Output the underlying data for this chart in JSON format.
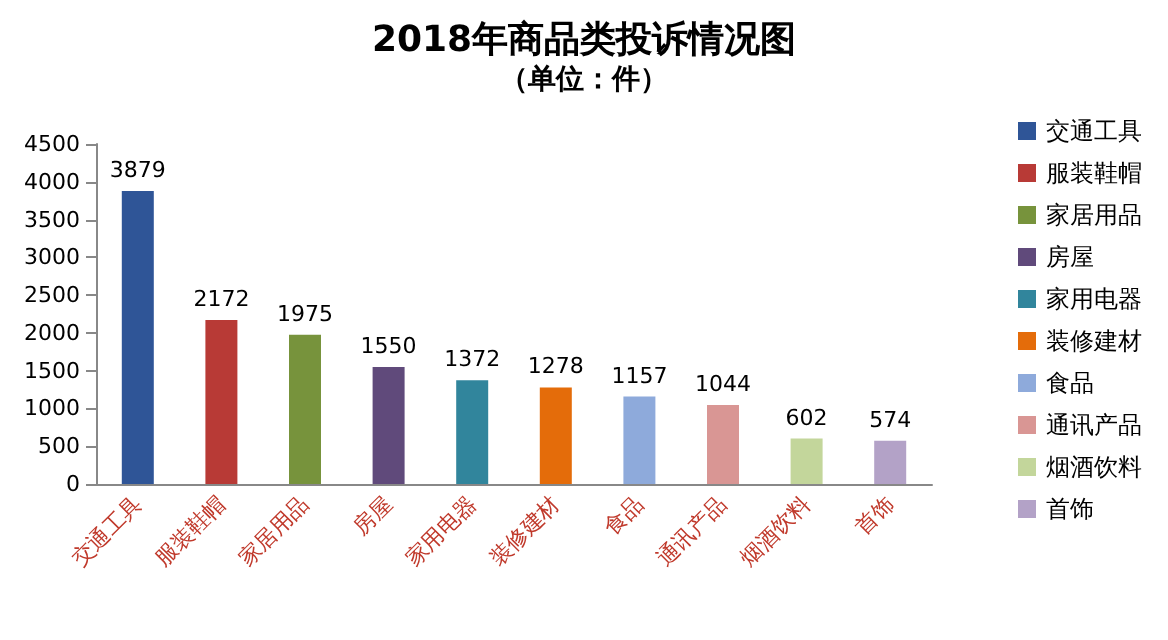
{
  "chart_data": {
    "type": "bar",
    "title": "2018年商品类投诉情况图",
    "subtitle": "（单位：件）",
    "categories": [
      "交通工具",
      "服装鞋帽",
      "家居用品",
      "房屋",
      "家用电器",
      "装修建材",
      "食品",
      "通讯产品",
      "烟酒饮料",
      "首饰"
    ],
    "series": [
      {
        "name": "交通工具",
        "color": "#2f5597",
        "values": [
          3879,
          null,
          null,
          null,
          null,
          null,
          null,
          null,
          null,
          null
        ]
      },
      {
        "name": "服装鞋帽",
        "color": "#b83a36",
        "values": [
          null,
          2172,
          null,
          null,
          null,
          null,
          null,
          null,
          null,
          null
        ]
      },
      {
        "name": "家居用品",
        "color": "#77933c",
        "values": [
          null,
          null,
          1975,
          null,
          null,
          null,
          null,
          null,
          null,
          null
        ]
      },
      {
        "name": "房屋",
        "color": "#604a7b",
        "values": [
          null,
          null,
          null,
          1550,
          null,
          null,
          null,
          null,
          null,
          null
        ]
      },
      {
        "name": "家用电器",
        "color": "#31859c",
        "values": [
          null,
          null,
          null,
          null,
          1372,
          null,
          null,
          null,
          null,
          null
        ]
      },
      {
        "name": "装修建材",
        "color": "#e46c0a",
        "values": [
          null,
          null,
          null,
          null,
          null,
          1278,
          null,
          null,
          null,
          null
        ]
      },
      {
        "name": "食品",
        "color": "#8eaadb",
        "values": [
          null,
          null,
          null,
          null,
          null,
          null,
          1157,
          null,
          null,
          null
        ]
      },
      {
        "name": "通讯产品",
        "color": "#d99694",
        "values": [
          null,
          null,
          null,
          null,
          null,
          null,
          null,
          1044,
          null,
          null
        ]
      },
      {
        "name": "烟酒饮料",
        "color": "#c3d69b",
        "values": [
          null,
          null,
          null,
          null,
          null,
          null,
          null,
          null,
          602,
          null
        ]
      },
      {
        "name": "首饰",
        "color": "#b3a2c7",
        "values": [
          null,
          null,
          null,
          null,
          null,
          null,
          null,
          null,
          null,
          574
        ]
      }
    ],
    "ylim": [
      0,
      4500
    ],
    "yticks": [
      0,
      500,
      1000,
      1500,
      2000,
      2500,
      3000,
      3500,
      4000,
      4500
    ],
    "data_labels": true,
    "grid": false,
    "legend": "right"
  }
}
